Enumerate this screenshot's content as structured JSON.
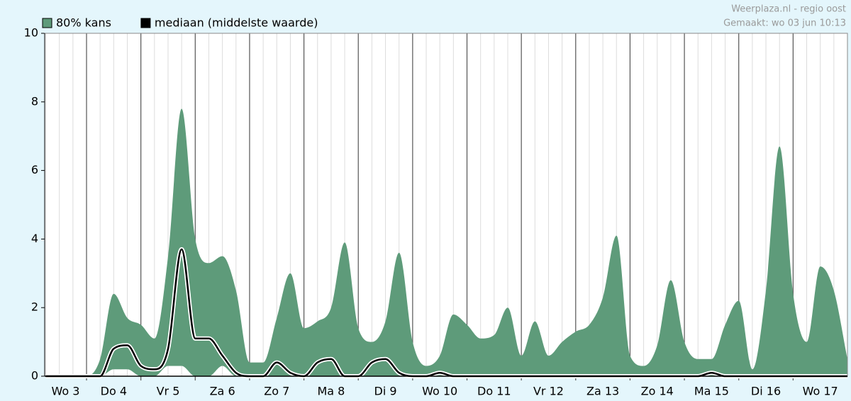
{
  "chart_data": {
    "type": "area",
    "source": "Weerplaza.nl - regio oost",
    "created": "Gemaakt: wo 03 jun 10:13",
    "x": [
      3.25,
      3.5,
      3.75,
      4.0,
      4.25,
      4.5,
      4.75,
      5.0,
      5.25,
      5.5,
      5.75,
      6.0,
      6.25,
      6.5,
      6.75,
      7.0,
      7.25,
      7.5,
      7.75,
      8.0,
      8.25,
      8.5,
      8.75,
      9.0,
      9.25,
      9.5,
      9.75,
      10.0,
      10.25,
      10.5,
      10.75,
      11.0,
      11.25,
      11.5,
      11.75,
      12.0,
      12.25,
      12.5,
      12.75,
      13.0,
      13.25,
      13.5,
      13.75,
      14.0,
      14.25,
      14.5,
      14.75,
      15.0,
      15.25,
      15.5,
      15.75,
      16.0,
      16.25,
      16.5,
      16.75,
      17.0,
      17.25,
      17.5,
      17.75,
      18.0
    ],
    "series": [
      {
        "name": "80% kans",
        "color": "#5e9b7a",
        "upper": [
          0,
          0,
          0,
          0,
          0.5,
          2.4,
          1.7,
          1.5,
          1.1,
          3.5,
          7.8,
          4.0,
          3.3,
          3.5,
          2.5,
          0.4,
          0.4,
          1.7,
          3.0,
          1.4,
          1.6,
          2.0,
          3.9,
          1.4,
          1.0,
          1.6,
          3.6,
          1.0,
          0.3,
          0.6,
          1.8,
          1.5,
          1.1,
          1.2,
          2.0,
          0.6,
          1.6,
          0.6,
          1.0,
          1.3,
          1.5,
          2.3,
          4.1,
          0.6,
          0.3,
          0.9,
          2.8,
          1.0,
          0.5,
          0.5,
          1.5,
          2.2,
          0.2,
          2.5,
          6.7,
          2.4,
          1.0,
          3.2,
          2.5,
          0.5
        ],
        "lower": [
          0,
          0,
          0,
          0,
          0,
          0.2,
          0.2,
          0,
          0,
          0.3,
          0.3,
          0,
          0,
          0.3,
          0,
          0,
          0,
          0,
          0,
          0,
          0,
          0,
          0,
          0,
          0,
          0,
          0,
          0,
          0,
          0,
          0,
          0,
          0,
          0,
          0,
          0,
          0,
          0,
          0,
          0,
          0,
          0,
          0,
          0,
          0,
          0,
          0,
          0,
          0,
          0,
          0,
          0,
          0,
          0,
          0,
          0,
          0,
          0,
          0,
          0
        ]
      },
      {
        "name": "mediaan (middelste waarde)",
        "color": "#000000",
        "values": [
          0,
          0,
          0,
          0,
          0,
          0.8,
          0.9,
          0.3,
          0.2,
          0.8,
          3.7,
          1.1,
          1.1,
          0.6,
          0.1,
          0,
          0,
          0.4,
          0.1,
          0,
          0.4,
          0.5,
          0,
          0,
          0.4,
          0.5,
          0.1,
          0,
          0,
          0.1,
          0,
          0,
          0,
          0,
          0,
          0,
          0,
          0,
          0,
          0,
          0,
          0,
          0,
          0,
          0,
          0,
          0,
          0,
          0,
          0.1,
          0,
          0,
          0,
          0,
          0,
          0,
          0,
          0,
          0,
          0
        ]
      }
    ],
    "xlim": [
      3.23,
      18.0
    ],
    "xticks": [
      {
        "value": 3.5,
        "label": "Wo 3"
      },
      {
        "value": 4.5,
        "label": "Do 4"
      },
      {
        "value": 5.5,
        "label": "Vr 5"
      },
      {
        "value": 6.5,
        "label": "Za 6"
      },
      {
        "value": 7.5,
        "label": "Zo 7"
      },
      {
        "value": 8.5,
        "label": "Ma 8"
      },
      {
        "value": 9.5,
        "label": "Di 9"
      },
      {
        "value": 10.5,
        "label": "Wo 10"
      },
      {
        "value": 11.5,
        "label": "Do 11"
      },
      {
        "value": 12.5,
        "label": "Vr 12"
      },
      {
        "value": 13.5,
        "label": "Za 13"
      },
      {
        "value": 14.5,
        "label": "Zo 14"
      },
      {
        "value": 15.5,
        "label": "Ma 15"
      },
      {
        "value": 16.5,
        "label": "Di 16"
      },
      {
        "value": 17.5,
        "label": "Wo 17"
      }
    ],
    "ylim": [
      0,
      10
    ],
    "yticks": [
      0,
      2,
      4,
      6,
      8,
      10
    ],
    "grid": true
  }
}
